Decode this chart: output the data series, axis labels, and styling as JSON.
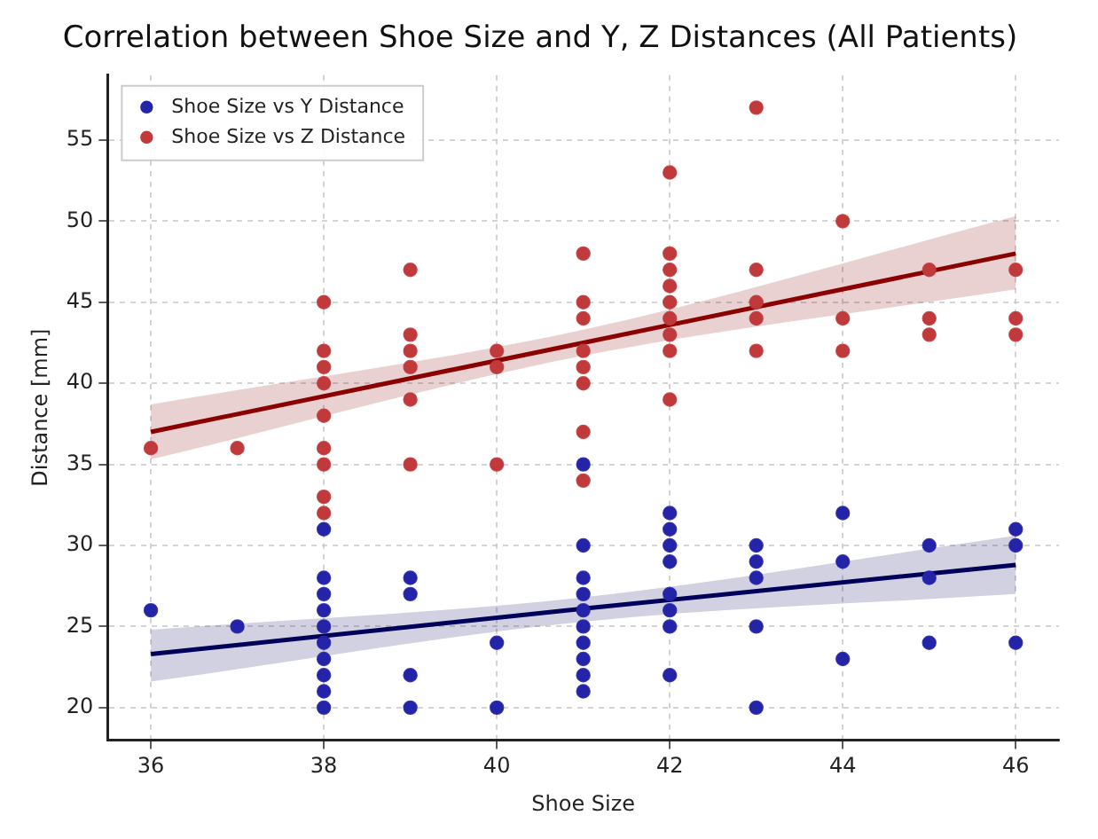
{
  "chart_data": {
    "type": "scatter",
    "title": "Correlation between Shoe Size and Y, Z Distances (All Patients)",
    "xlabel": "Shoe Size",
    "ylabel": "Distance [mm]",
    "xlim": [
      35.5,
      46.5
    ],
    "xticks": [
      36,
      38,
      40,
      42,
      44,
      46
    ],
    "ylim": [
      18,
      59
    ],
    "yticks": [
      20,
      25,
      30,
      35,
      40,
      45,
      50,
      55
    ],
    "grid": true,
    "legend": "top left",
    "marker": "circle",
    "series": [
      {
        "name": "Shoe Size vs Y Distance",
        "color": "#2424a8",
        "x": [
          36,
          37,
          38,
          38,
          38,
          38,
          38,
          38,
          38,
          38,
          38,
          38,
          39,
          39,
          39,
          39,
          40,
          40,
          41,
          41,
          41,
          41,
          41,
          41,
          41,
          41,
          41,
          41,
          42,
          42,
          42,
          42,
          42,
          42,
          42,
          42,
          43,
          43,
          43,
          43,
          43,
          44,
          44,
          44,
          45,
          45,
          45,
          46,
          46,
          46
        ],
        "values": [
          26,
          25,
          31,
          28,
          27,
          26,
          25,
          24,
          23,
          22,
          21,
          20,
          28,
          27,
          22,
          20,
          24,
          20,
          35,
          30,
          28,
          27,
          26,
          25,
          24,
          23,
          22,
          21,
          32,
          31,
          30,
          29,
          27,
          26,
          25,
          22,
          30,
          29,
          28,
          25,
          20,
          32,
          29,
          23,
          30,
          28,
          24,
          31,
          30,
          24
        ]
      },
      {
        "name": "Shoe Size vs Z Distance",
        "color": "#c0393b",
        "x": [
          36,
          37,
          38,
          38,
          38,
          38,
          38,
          38,
          38,
          38,
          38,
          39,
          39,
          39,
          39,
          39,
          39,
          40,
          40,
          40,
          41,
          41,
          41,
          41,
          41,
          41,
          41,
          41,
          42,
          42,
          42,
          42,
          42,
          42,
          42,
          42,
          42,
          43,
          43,
          43,
          43,
          43,
          44,
          44,
          44,
          45,
          45,
          45,
          46,
          46,
          46
        ],
        "values": [
          36,
          36,
          45,
          42,
          41,
          40,
          38,
          36,
          35,
          33,
          32,
          47,
          43,
          42,
          41,
          39,
          35,
          42,
          41,
          35,
          48,
          45,
          44,
          42,
          41,
          40,
          37,
          34,
          53,
          48,
          47,
          46,
          45,
          44,
          43,
          42,
          39,
          57,
          47,
          45,
          44,
          42,
          50,
          44,
          42,
          47,
          44,
          43,
          47,
          44,
          43
        ]
      },
      {
        "type": "line",
        "marker": "none",
        "color": "#00005a",
        "x": [
          36,
          41,
          46
        ],
        "values": [
          23.3,
          26.1,
          28.8
        ],
        "lower": [
          21.6,
          25.3,
          27.0
        ],
        "upper": [
          24.8,
          26.8,
          30.6
        ]
      },
      {
        "type": "line",
        "marker": "none",
        "color": "#8b0000",
        "x": [
          36,
          41,
          46
        ],
        "values": [
          37,
          42.5,
          48
        ],
        "lower": [
          35.3,
          41.7,
          45.8
        ],
        "upper": [
          38.7,
          43.3,
          50.3
        ]
      }
    ]
  }
}
